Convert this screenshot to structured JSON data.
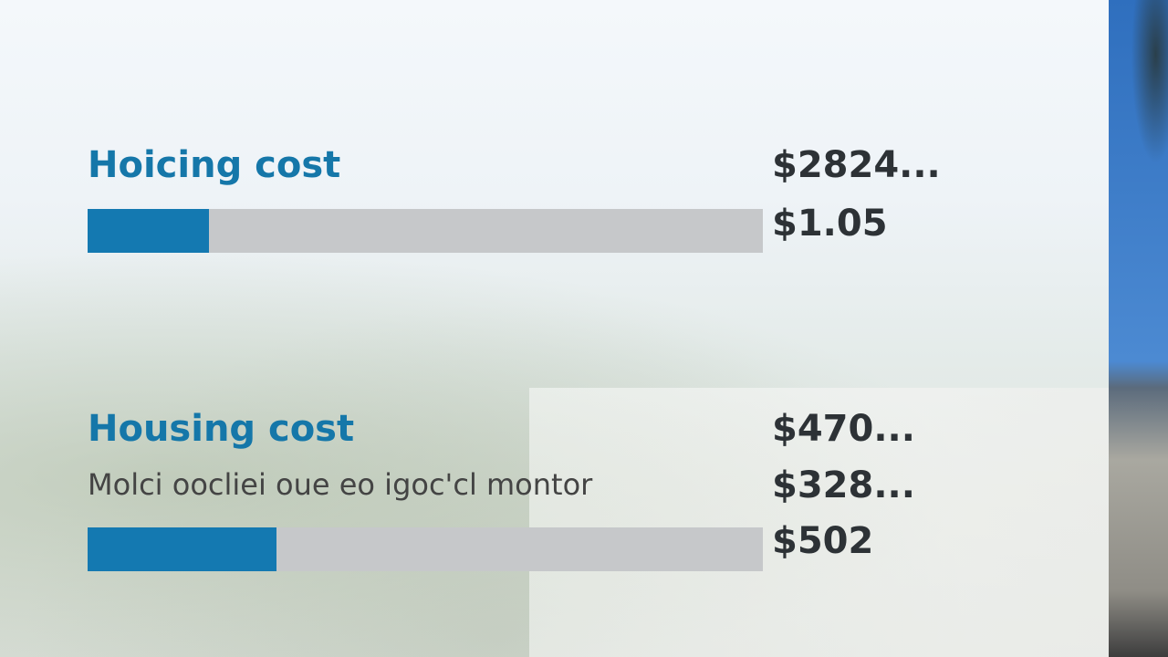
{
  "cards": [
    {
      "title": "Hoicing cost",
      "values": [
        "$2824...",
        "$1.05"
      ],
      "fill_percent": 18
    },
    {
      "title": "Housing cost",
      "subtitle": "Molci oocliei oue eo igoc'cl montor",
      "values": [
        "$470...",
        "$328...",
        "$502"
      ],
      "fill_percent": 28
    }
  ]
}
